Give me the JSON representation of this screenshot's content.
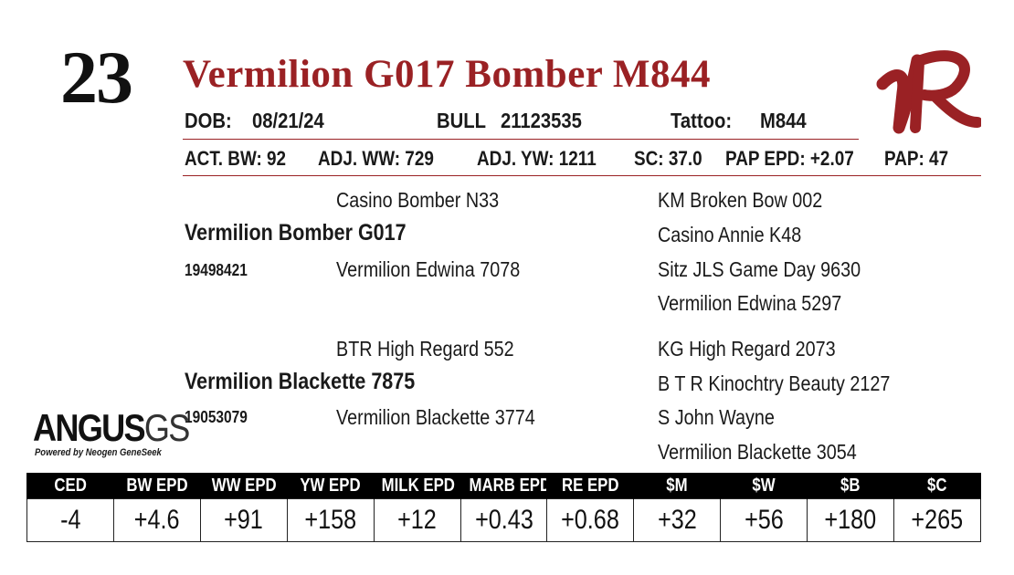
{
  "lot_number": "23",
  "animal_name": "Vermilion G017 Bomber M844",
  "info": {
    "dob_label": "DOB:",
    "dob": "08/21/24",
    "sex_label": "BULL",
    "registration": "21123535",
    "tattoo_label": "Tattoo:",
    "tattoo": "M844"
  },
  "measures": {
    "act_bw": "ACT. BW: 92",
    "adj_ww": "ADJ. WW: 729",
    "adj_yw": "ADJ. YW: 1211",
    "sc": "SC: 37.0",
    "pap_epd": "PAP EPD: +2.07",
    "pap": "PAP: 47"
  },
  "pedigree": {
    "sire": {
      "name": "Vermilion Bomber G017",
      "reg": "19498421",
      "sire": "Casino Bomber N33",
      "dam": "Vermilion Edwina 7078",
      "sire_sire": "KM Broken Bow 002",
      "sire_dam": "Casino Annie K48",
      "dam_sire": "Sitz JLS Game Day 9630",
      "dam_dam": "Vermilion Edwina 5297"
    },
    "dam": {
      "name": "Vermilion Blackette 7875",
      "reg": "19053079",
      "sire": "BTR High Regard 552",
      "dam": "Vermilion Blackette 3774",
      "sire_sire": "KG High Regard 2073",
      "sire_dam": "B T R Kinochtry Beauty 2127",
      "dam_sire": "S John Wayne",
      "dam_dam": "Vermilion Blackette 3054"
    }
  },
  "angus_logo": {
    "word_main": "ANGUS",
    "word_suffix": "GS",
    "tagline": "Powered by Neogen GeneSeek"
  },
  "brand_logo": {
    "name": "vr-brand-logo",
    "color": "#9a2124"
  },
  "epd_table": {
    "headers": [
      "CED",
      "BW EPD",
      "WW EPD",
      "YW EPD",
      "MILK EPD",
      "MARB EPD",
      "RE EPD",
      "$M",
      "$W",
      "$B",
      "$C"
    ],
    "values": [
      "-4",
      "+4.6",
      "+91",
      "+158",
      "+12",
      "+0.43",
      "+0.68",
      "+32",
      "+56",
      "+180",
      "+265"
    ]
  },
  "colors": {
    "accent": "#9a2124",
    "header_bg": "#000000"
  }
}
